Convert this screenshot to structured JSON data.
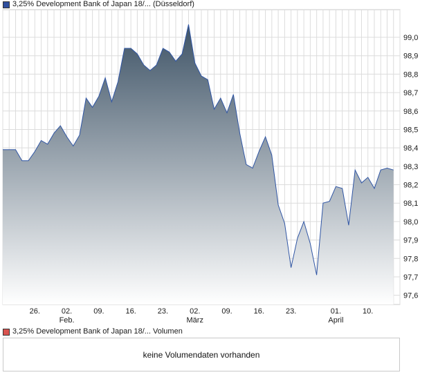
{
  "legend": {
    "price_label": "3,25% Development Bank of Japan 18/... (Düsseldorf)",
    "volume_label": "3,25% Development Bank of Japan 18/... Volumen"
  },
  "volume": {
    "message": "keine Volumendaten vorhanden"
  },
  "colors": {
    "line": "#2f55a4",
    "fill_top": "#3e5366",
    "fill_bottom": "#ffffff",
    "grid": "#dcdcdc",
    "price_swatch": "#2f4f9e",
    "volume_swatch": "#d9534f"
  },
  "chart_data": {
    "type": "area",
    "title": "3,25% Development Bank of Japan 18/... (Düsseldorf)",
    "ylim": [
      97.55,
      99.15
    ],
    "y_ticks": [
      "99,0",
      "98,9",
      "98,8",
      "98,7",
      "98,6",
      "98,5",
      "98,4",
      "98,3",
      "98,2",
      "98,1",
      "98,0",
      "97,9",
      "97,8",
      "97,7",
      "97,6"
    ],
    "y_tick_values": [
      99.0,
      98.9,
      98.8,
      98.7,
      98.6,
      98.5,
      98.4,
      98.3,
      98.2,
      98.1,
      98.0,
      97.9,
      97.8,
      97.7,
      97.6
    ],
    "x_range": [
      0,
      62
    ],
    "x_ticks": [
      {
        "x": 5,
        "label": "26.",
        "sub": ""
      },
      {
        "x": 10,
        "label": "02.",
        "sub": "Feb."
      },
      {
        "x": 15,
        "label": "09.",
        "sub": ""
      },
      {
        "x": 20,
        "label": "16.",
        "sub": ""
      },
      {
        "x": 25,
        "label": "23.",
        "sub": ""
      },
      {
        "x": 30,
        "label": "02.",
        "sub": "März"
      },
      {
        "x": 35,
        "label": "09.",
        "sub": ""
      },
      {
        "x": 40,
        "label": "16.",
        "sub": ""
      },
      {
        "x": 45,
        "label": "23.",
        "sub": ""
      },
      {
        "x": 52,
        "label": "01.",
        "sub": "April"
      },
      {
        "x": 57,
        "label": "10.",
        "sub": ""
      }
    ],
    "series": [
      {
        "name": "3,25% Development Bank of Japan 18/... (Düsseldorf)",
        "x": [
          0,
          1,
          2,
          3,
          4,
          5,
          6,
          7,
          8,
          9,
          10,
          11,
          12,
          13,
          14,
          15,
          16,
          17,
          18,
          19,
          20,
          21,
          22,
          23,
          24,
          25,
          26,
          27,
          28,
          29,
          30,
          31,
          32,
          33,
          34,
          35,
          36,
          37,
          38,
          39,
          40,
          41,
          42,
          43,
          44,
          45,
          46,
          47,
          48,
          49,
          50,
          51,
          52,
          53,
          54,
          55,
          56,
          57,
          58,
          59,
          60,
          61
        ],
        "values": [
          98.39,
          98.39,
          98.39,
          98.33,
          98.33,
          98.38,
          98.44,
          98.42,
          98.48,
          98.52,
          98.46,
          98.41,
          98.47,
          98.67,
          98.62,
          98.68,
          98.78,
          98.65,
          98.76,
          98.94,
          98.94,
          98.91,
          98.85,
          98.82,
          98.85,
          98.94,
          98.92,
          98.87,
          98.91,
          99.07,
          98.86,
          98.79,
          98.77,
          98.61,
          98.67,
          98.59,
          98.69,
          98.48,
          98.31,
          98.29,
          98.38,
          98.46,
          98.36,
          98.09,
          97.99,
          97.75,
          97.91,
          98.0,
          97.88,
          97.71,
          98.1,
          98.11,
          98.19,
          98.18,
          97.98,
          98.28,
          98.21,
          98.24,
          98.18,
          98.28,
          98.29,
          98.28
        ]
      }
    ]
  }
}
